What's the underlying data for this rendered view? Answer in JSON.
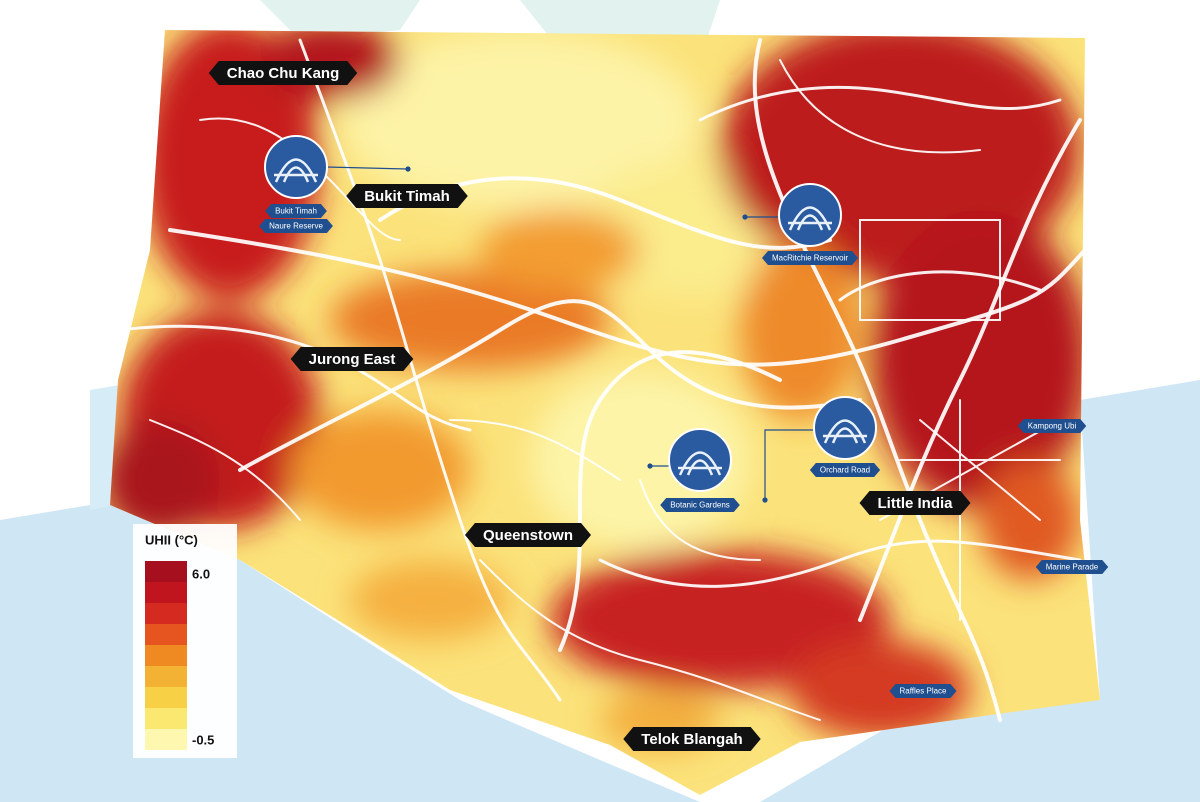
{
  "legend": {
    "title": "UHII (°C)",
    "max": "6.0",
    "min": "-0.5"
  },
  "districts": [
    {
      "label": "Chao Chu Kang"
    },
    {
      "label": "Bukit Timah"
    },
    {
      "label": "Jurong East"
    },
    {
      "label": "Queenstown"
    },
    {
      "label": "Little India"
    },
    {
      "label": "Telok Blangah"
    }
  ],
  "landmarks": [
    {
      "lines": [
        "Bukit Timah",
        "Naure Reserve"
      ]
    },
    {
      "lines": [
        "MacRitchie Reservoir"
      ]
    },
    {
      "lines": [
        "Orchard Road"
      ]
    },
    {
      "lines": [
        "Botanic Gardens"
      ]
    },
    {
      "lines": [
        "Kampong Ubi"
      ]
    },
    {
      "lines": [
        "Marine Parade"
      ]
    },
    {
      "lines": [
        "Raffles Place"
      ]
    }
  ]
}
